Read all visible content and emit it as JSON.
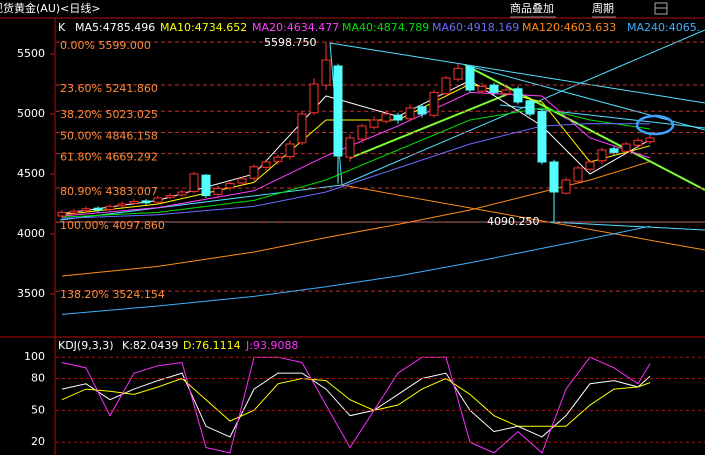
{
  "header": {
    "title": "现货黄金(AU)<日线>",
    "buttons": [
      "商品叠加",
      "周期"
    ]
  },
  "chart_data": [
    {
      "type": "candlestick",
      "label": "K",
      "ylim": [
        3158,
        5800
      ],
      "yticks": [
        3500,
        4000,
        4500,
        5000,
        5500
      ],
      "open": [
        4150,
        4175,
        4195,
        4215,
        4205,
        4235,
        4255,
        4275,
        4265,
        4305,
        4325,
        4355,
        4490,
        4330,
        4385,
        4425,
        4465,
        4555,
        4605,
        4645,
        4760,
        5010,
        5240,
        5400,
        4640,
        4790,
        4890,
        4940,
        4990,
        4960,
        5060,
        4990,
        5170,
        5290,
        5390,
        5190,
        5240,
        5170,
        5210,
        5110,
        5020,
        4600,
        4340,
        4440,
        4540,
        4610,
        4710,
        4690,
        4740,
        4770
      ],
      "high": [
        4200,
        4210,
        4230,
        4230,
        4250,
        4270,
        4290,
        4290,
        4320,
        4340,
        4370,
        4520,
        4500,
        4400,
        4440,
        4480,
        4580,
        4620,
        4660,
        4780,
        5020,
        5300,
        5599,
        5420,
        4830,
        4920,
        4980,
        5030,
        5010,
        5080,
        5080,
        5200,
        5320,
        5420,
        5400,
        5260,
        5260,
        5230,
        5230,
        5120,
        5040,
        4620,
        4470,
        4570,
        4620,
        4720,
        4730,
        4770,
        4800,
        4830
      ],
      "low": [
        4130,
        4160,
        4180,
        4180,
        4190,
        4220,
        4240,
        4240,
        4250,
        4290,
        4310,
        4340,
        4300,
        4310,
        4360,
        4400,
        4440,
        4530,
        4580,
        4620,
        4740,
        4990,
        5200,
        4420,
        4600,
        4760,
        4870,
        4920,
        4920,
        4940,
        4970,
        4970,
        5150,
        5270,
        5180,
        5170,
        5160,
        5150,
        5080,
        4980,
        4580,
        4090,
        4330,
        4420,
        4520,
        4580,
        4650,
        4670,
        4720,
        4750
      ],
      "close": [
        4180,
        4190,
        4210,
        4200,
        4230,
        4250,
        4270,
        4260,
        4300,
        4320,
        4350,
        4500,
        4320,
        4380,
        4420,
        4460,
        4560,
        4600,
        4640,
        4750,
        5000,
        5250,
        5450,
        4650,
        4800,
        4900,
        4950,
        5000,
        4950,
        5050,
        5000,
        5180,
        5300,
        5380,
        5200,
        5230,
        5180,
        5200,
        5100,
        5000,
        4600,
        4350,
        4450,
        4550,
        4600,
        4700,
        4680,
        4750,
        4780,
        4800
      ],
      "up_color": "#ff3232",
      "down_color": "#54ffff",
      "series": [
        {
          "name": "MA5:4785.496",
          "color": "#ffffff",
          "x": [
            0,
            8,
            16,
            22,
            28,
            34,
            40,
            44,
            49
          ],
          "values": [
            4170,
            4280,
            4500,
            5150,
            4980,
            5280,
            4900,
            4500,
            4785.496
          ]
        },
        {
          "name": "MA10:4734.652",
          "color": "#ffff00",
          "x": [
            0,
            8,
            16,
            22,
            28,
            34,
            40,
            44,
            49
          ],
          "values": [
            4160,
            4250,
            4430,
            4950,
            4950,
            5250,
            5100,
            4600,
            4734.652
          ]
        },
        {
          "name": "MA20:4634.477",
          "color": "#ff40ff",
          "x": [
            0,
            8,
            16,
            22,
            28,
            34,
            40,
            44,
            49
          ],
          "values": [
            4150,
            4220,
            4360,
            4650,
            4900,
            5180,
            5150,
            4800,
            4634.477
          ]
        },
        {
          "name": "MA40:4874.789",
          "color": "#00e000",
          "x": [
            0,
            8,
            16,
            22,
            28,
            34,
            40,
            44,
            49
          ],
          "values": [
            4140,
            4180,
            4280,
            4450,
            4700,
            4950,
            5050,
            4950,
            4874.789
          ]
        },
        {
          "name": "MA60:4918.169",
          "color": "#6a6aff",
          "x": [
            0,
            8,
            16,
            22,
            28,
            34,
            40,
            44,
            49
          ],
          "values": [
            4130,
            4160,
            4230,
            4350,
            4550,
            4750,
            4900,
            4920,
            4918.169
          ]
        },
        {
          "name": "MA120:4603.633",
          "color": "#ff8c1a",
          "x": [
            0,
            8,
            16,
            22,
            28,
            34,
            40,
            44,
            49
          ],
          "values": [
            3650,
            3730,
            3850,
            3970,
            4080,
            4200,
            4350,
            4450,
            4603.633
          ]
        },
        {
          "name": "MA240:4065.",
          "color": "#3fb0ff",
          "x": [
            0,
            8,
            16,
            22,
            28,
            34,
            40,
            44,
            49
          ],
          "values": [
            3330,
            3400,
            3480,
            3560,
            3650,
            3760,
            3880,
            3960,
            4065
          ]
        }
      ],
      "fib_levels": [
        {
          "value": 5599,
          "label": "0.00% 5599.000"
        },
        {
          "value": 5241.86,
          "label": "23.60% 5241.860"
        },
        {
          "value": 5023.025,
          "label": "38.20% 5023.025"
        },
        {
          "value": 4846.158,
          "label": "50.00% 4846.158"
        },
        {
          "value": 4669.292,
          "label": "61.80% 4669.292"
        },
        {
          "value": 4383.007,
          "label": "80.90% 4383.007"
        },
        {
          "value": 4097.86,
          "label": "100.00% 4097.860"
        },
        {
          "value": 3524.154,
          "label": "138.20% 3524.154"
        }
      ],
      "annotations": [
        "5598.750",
        "4090.250"
      ]
    },
    {
      "type": "line",
      "title": "KDJ(9,3,3)",
      "ylim": [
        8,
        119
      ],
      "yticks": [
        20,
        50,
        80,
        100
      ],
      "series": [
        {
          "name": "K:82.0439",
          "color": "#ffffff",
          "x": [
            0,
            2,
            4,
            6,
            8,
            10,
            12,
            14,
            16,
            18,
            20,
            22,
            24,
            26,
            28,
            30,
            32,
            34,
            36,
            38,
            40,
            42,
            44,
            46,
            48,
            49
          ],
          "values": [
            70,
            75,
            60,
            70,
            78,
            85,
            35,
            25,
            70,
            85,
            85,
            70,
            45,
            50,
            65,
            80,
            85,
            50,
            30,
            35,
            25,
            45,
            75,
            78,
            72,
            82.0439
          ]
        },
        {
          "name": "D:76.1114",
          "color": "#ffff00",
          "x": [
            0,
            2,
            4,
            6,
            8,
            10,
            12,
            14,
            16,
            18,
            20,
            22,
            24,
            26,
            28,
            30,
            32,
            34,
            36,
            38,
            40,
            42,
            44,
            46,
            48,
            49
          ],
          "values": [
            60,
            70,
            68,
            65,
            72,
            80,
            60,
            40,
            50,
            75,
            80,
            78,
            60,
            50,
            55,
            70,
            80,
            65,
            45,
            35,
            35,
            35,
            55,
            70,
            72,
            76.1114
          ]
        },
        {
          "name": "J:93.9088",
          "color": "#ff30ff",
          "x": [
            0,
            2,
            4,
            6,
            8,
            10,
            12,
            14,
            16,
            18,
            20,
            22,
            24,
            26,
            28,
            30,
            32,
            34,
            36,
            38,
            40,
            42,
            44,
            46,
            48,
            49
          ],
          "values": [
            95,
            90,
            45,
            85,
            92,
            95,
            15,
            10,
            100,
            100,
            95,
            55,
            15,
            50,
            85,
            100,
            100,
            20,
            10,
            30,
            10,
            70,
            100,
            90,
            75,
            93.9088
          ]
        }
      ]
    }
  ]
}
